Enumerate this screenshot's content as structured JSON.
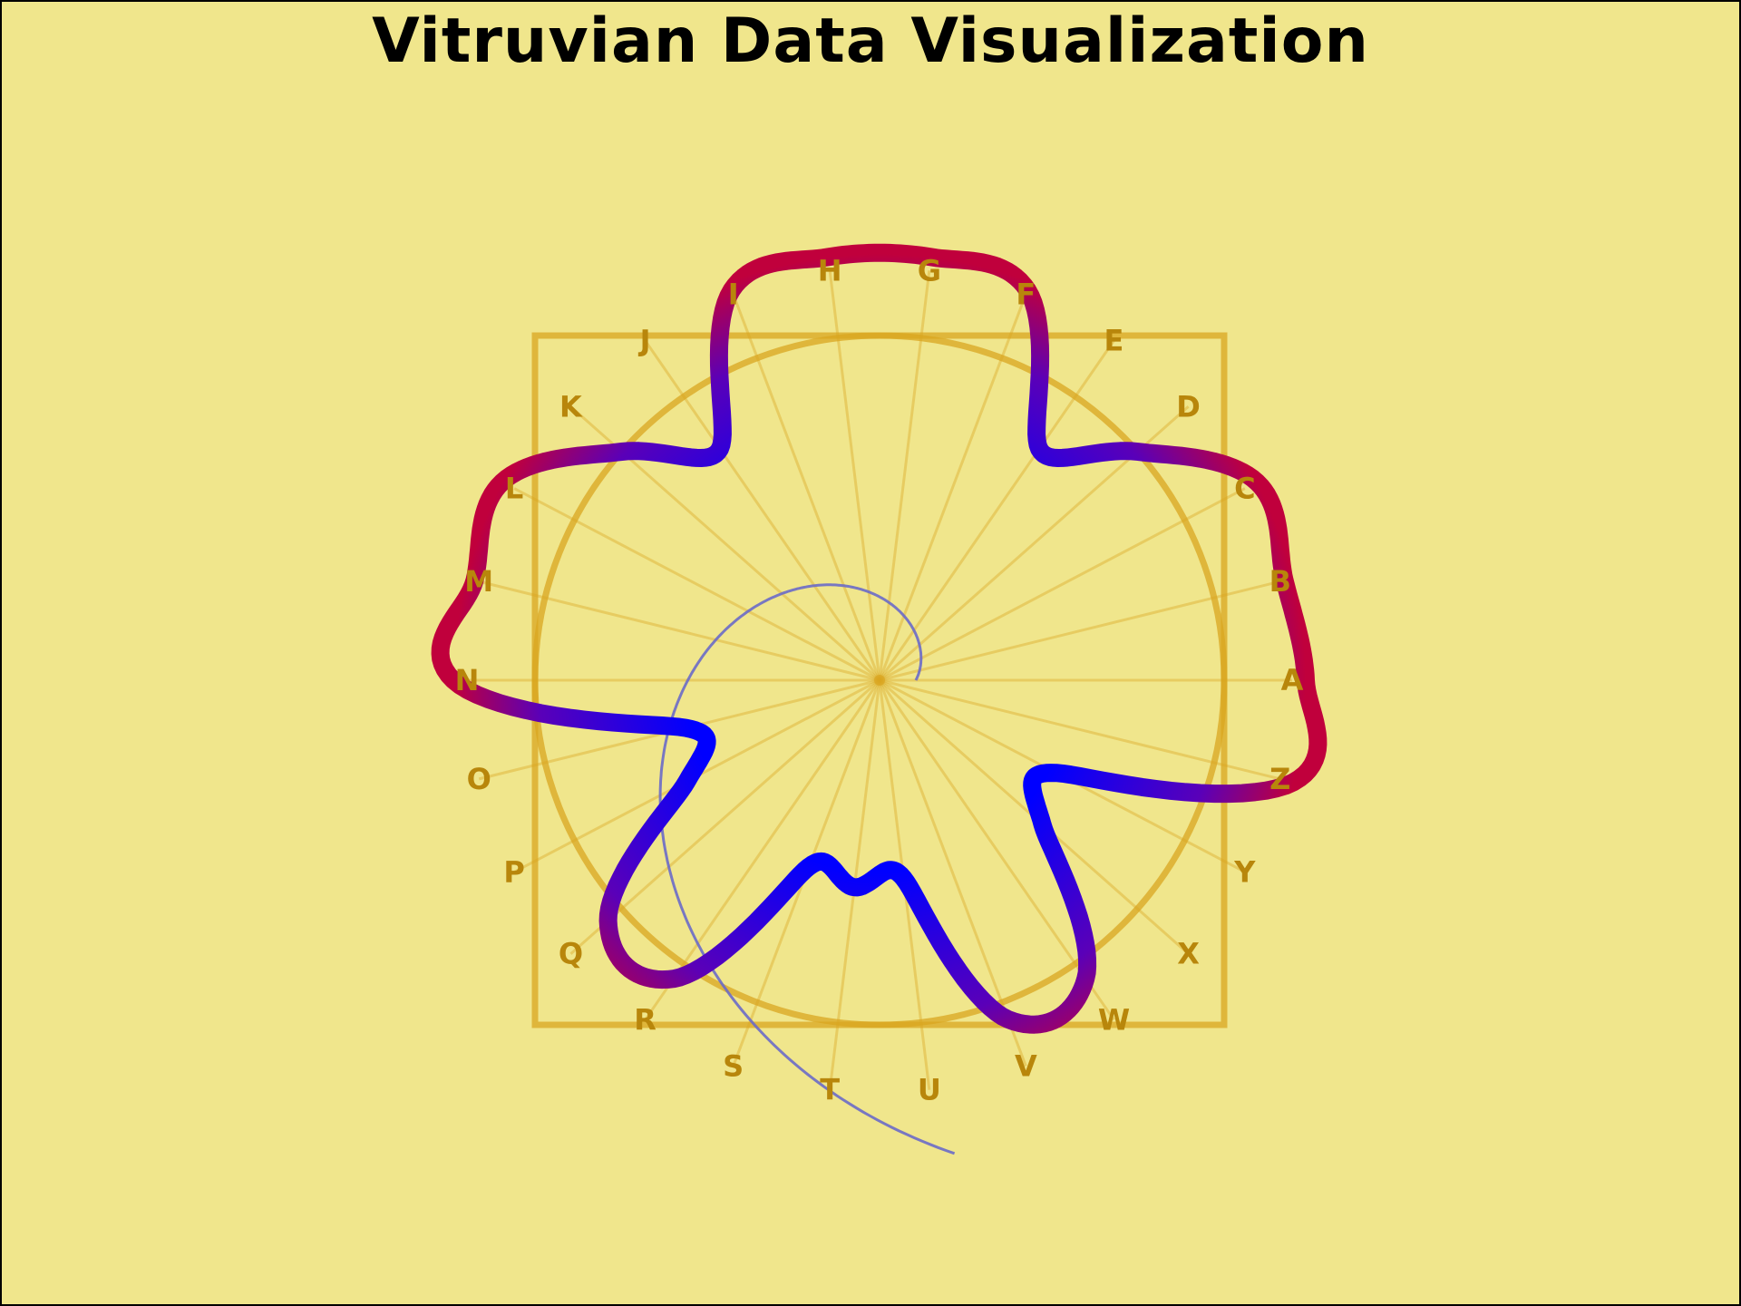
{
  "title": "Vitruvian Data Visualization",
  "chart_data": {
    "type": "radar",
    "categories": [
      "A",
      "B",
      "C",
      "D",
      "E",
      "F",
      "G",
      "H",
      "I",
      "J",
      "K",
      "L",
      "M",
      "N",
      "O",
      "P",
      "Q",
      "R",
      "S",
      "T",
      "U",
      "V",
      "W",
      "X",
      "Y",
      "Z"
    ],
    "values": [
      470,
      460,
      470,
      380,
      310,
      460,
      470,
      470,
      460,
      310,
      380,
      470,
      460,
      470,
      220,
      240,
      400,
      400,
      220,
      230,
      220,
      400,
      400,
      240,
      220,
      470
    ],
    "reference_radius": 380,
    "series_color_low": "#0000ff",
    "series_color_high": "#c0003c",
    "guide_color": "#daa520",
    "label_color": "#b8860b",
    "spiral_color": "#6a6ac8",
    "background": "#f0e68c"
  }
}
